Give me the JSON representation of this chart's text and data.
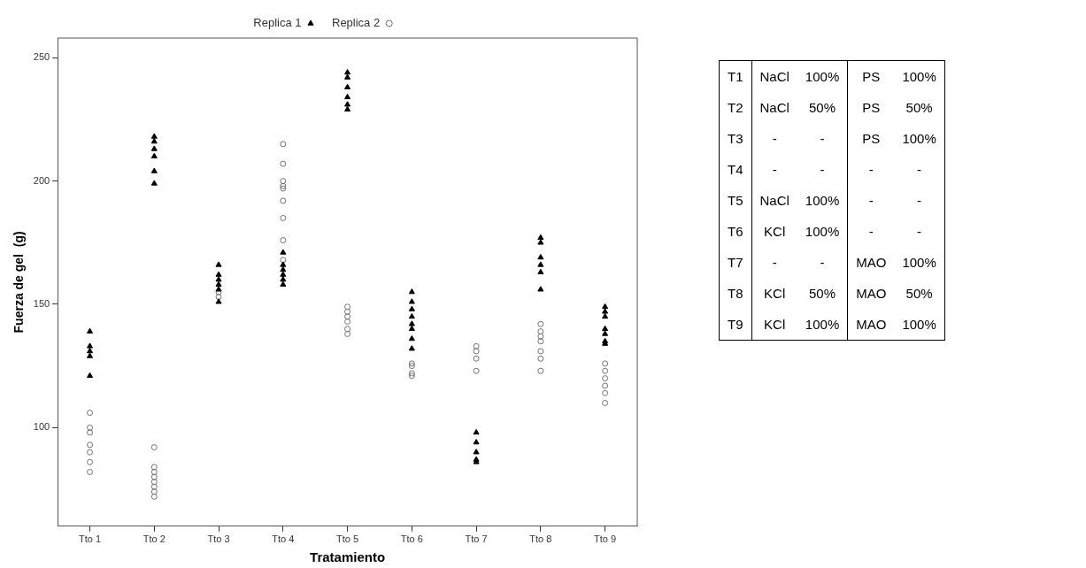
{
  "chart_data": [
    {
      "type": "scatter",
      "xlabel": "Tratamiento",
      "ylabel": "Fuerza de gel  (g)",
      "categories": [
        "Tto 1",
        "Tto 2",
        "Tto 3",
        "Tto 4",
        "Tto 5",
        "Tto 6",
        "Tto 7",
        "Tto 8",
        "Tto 9"
      ],
      "ylim": [
        60,
        258
      ],
      "yticks": [
        100,
        150,
        200,
        250
      ],
      "grid": false,
      "legend": "top",
      "series": [
        {
          "name": "Replica 1",
          "color": "#000000",
          "marker": "triangle",
          "x": [
            "Tto 1",
            "Tto 1",
            "Tto 1",
            "Tto 1",
            "Tto 1",
            "Tto 2",
            "Tto 2",
            "Tto 2",
            "Tto 2",
            "Tto 2",
            "Tto 2",
            "Tto 3",
            "Tto 3",
            "Tto 3",
            "Tto 3",
            "Tto 3",
            "Tto 3",
            "Tto 4",
            "Tto 4",
            "Tto 4",
            "Tto 4",
            "Tto 4",
            "Tto 4",
            "Tto 5",
            "Tto 5",
            "Tto 5",
            "Tto 5",
            "Tto 5",
            "Tto 5",
            "Tto 6",
            "Tto 6",
            "Tto 6",
            "Tto 6",
            "Tto 6",
            "Tto 6",
            "Tto 6",
            "Tto 6",
            "Tto 7",
            "Tto 7",
            "Tto 7",
            "Tto 7",
            "Tto 7",
            "Tto 8",
            "Tto 8",
            "Tto 8",
            "Tto 8",
            "Tto 8",
            "Tto 8",
            "Tto 9",
            "Tto 9",
            "Tto 9",
            "Tto 9",
            "Tto 9",
            "Tto 9",
            "Tto 9"
          ],
          "values": [
            139,
            133,
            131,
            129,
            121,
            218,
            216,
            213,
            210,
            204,
            199,
            166,
            162,
            160,
            158,
            156,
            151,
            171,
            166,
            164,
            162,
            160,
            158,
            244,
            242,
            238,
            234,
            231,
            229,
            155,
            151,
            148,
            145,
            142,
            140,
            136,
            132,
            98,
            94,
            90,
            87,
            86,
            177,
            175,
            169,
            166,
            163,
            156,
            149,
            147,
            145,
            140,
            138,
            135,
            134
          ]
        },
        {
          "name": "Replica 2",
          "color": "#707070",
          "marker": "circle",
          "x": [
            "Tto 1",
            "Tto 1",
            "Tto 1",
            "Tto 1",
            "Tto 1",
            "Tto 1",
            "Tto 1",
            "Tto 2",
            "Tto 2",
            "Tto 2",
            "Tto 2",
            "Tto 2",
            "Tto 2",
            "Tto 2",
            "Tto 2",
            "Tto 3",
            "Tto 3",
            "Tto 3",
            "Tto 4",
            "Tto 4",
            "Tto 4",
            "Tto 4",
            "Tto 4",
            "Tto 4",
            "Tto 4",
            "Tto 4",
            "Tto 4",
            "Tto 5",
            "Tto 5",
            "Tto 5",
            "Tto 5",
            "Tto 5",
            "Tto 5",
            "Tto 6",
            "Tto 6",
            "Tto 6",
            "Tto 6",
            "Tto 7",
            "Tto 7",
            "Tto 7",
            "Tto 7",
            "Tto 8",
            "Tto 8",
            "Tto 8",
            "Tto 8",
            "Tto 8",
            "Tto 8",
            "Tto 8",
            "Tto 9",
            "Tto 9",
            "Tto 9",
            "Tto 9",
            "Tto 9",
            "Tto 9"
          ],
          "values": [
            106,
            100,
            98,
            93,
            90,
            86,
            82,
            92,
            84,
            82,
            80,
            78,
            76,
            74,
            72,
            null,
            155,
            153,
            215,
            207,
            200,
            198,
            197,
            192,
            185,
            176,
            168,
            149,
            147,
            145,
            143,
            140,
            138,
            126,
            125,
            122,
            121,
            133,
            131,
            128,
            123,
            142,
            139,
            137,
            135,
            131,
            128,
            123,
            126,
            123,
            120,
            117,
            114,
            110
          ]
        }
      ]
    },
    {
      "type": "other",
      "y_categories": [
        "T1",
        "T2",
        "T3",
        "T4",
        "T5",
        "T6",
        "T7",
        "T8",
        "T9"
      ],
      "cell_labels": [
        [
          "NaCl",
          "100%",
          "PS",
          "100%"
        ],
        [
          "NaCl",
          "50%",
          "PS",
          "50%"
        ],
        [
          "-",
          "-",
          "PS",
          "100%"
        ],
        [
          "-",
          "-",
          "-",
          "-"
        ],
        [
          "NaCl",
          "100%",
          "-",
          "-"
        ],
        [
          "KCl",
          "100%",
          "-",
          "-"
        ],
        [
          "-",
          "-",
          "MAO",
          "100%"
        ],
        [
          "KCl",
          "50%",
          "MAO",
          "50%"
        ],
        [
          "KCl",
          "100%",
          "MAO",
          "100%"
        ]
      ]
    }
  ]
}
